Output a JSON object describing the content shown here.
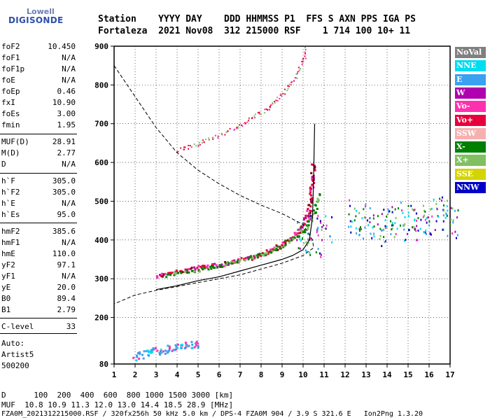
{
  "logo": {
    "top": "Lowell",
    "main": "DIGISONDE"
  },
  "header": {
    "line1": "Station    YYYY DAY    DDD HHMMSS P1  FFS S AXN PPS IGA PS",
    "line2": "Fortaleza  2021 Nov08  312 215000 RSF    1 714 100 10+ 11"
  },
  "params": [
    {
      "k": "foF2",
      "v": "10.450"
    },
    {
      "k": "foF1",
      "v": "N/A"
    },
    {
      "k": "foF1p",
      "v": "N/A"
    },
    {
      "k": "foE",
      "v": "N/A"
    },
    {
      "k": "foEp",
      "v": "0.46"
    },
    {
      "k": "fxI",
      "v": "10.90"
    },
    {
      "k": "foEs",
      "v": "3.00"
    },
    {
      "k": "fmin",
      "v": "1.95"
    },
    {
      "k": "MUF(D)",
      "v": "28.91"
    },
    {
      "k": "M(D)",
      "v": "2.77"
    },
    {
      "k": "D",
      "v": "N/A"
    },
    {
      "k": "h`F",
      "v": "305.0"
    },
    {
      "k": "h`F2",
      "v": "305.0"
    },
    {
      "k": "h`E",
      "v": "N/A"
    },
    {
      "k": "h`Es",
      "v": "95.0"
    },
    {
      "k": "hmF2",
      "v": "385.6"
    },
    {
      "k": "hmF1",
      "v": "N/A"
    },
    {
      "k": "hmE",
      "v": "110.0"
    },
    {
      "k": "yF2",
      "v": "97.1"
    },
    {
      "k": "yF1",
      "v": "N/A"
    },
    {
      "k": "yE",
      "v": "20.0"
    },
    {
      "k": "B0",
      "v": "89.4"
    },
    {
      "k": "B1",
      "v": "2.79"
    },
    {
      "k": "C-level",
      "v": "33"
    }
  ],
  "left_footer": {
    "auto": "Auto:",
    "artist": "Artist5",
    "version": "500200"
  },
  "legend": [
    {
      "label": "NoVal",
      "color": "#808080"
    },
    {
      "label": "NNE",
      "color": "#00dcf0"
    },
    {
      "label": "E",
      "color": "#3aa0f0"
    },
    {
      "label": "W",
      "color": "#b000b0"
    },
    {
      "label": "Vo-",
      "color": "#ff30b0"
    },
    {
      "label": "Vo+",
      "color": "#e8003c"
    },
    {
      "label": "SSW",
      "color": "#f7b0b0"
    },
    {
      "label": "X-",
      "color": "#008000"
    },
    {
      "label": "X+",
      "color": "#80c060"
    },
    {
      "label": "SSE",
      "color": "#d4d400"
    },
    {
      "label": "NNW",
      "color": "#0000c8"
    }
  ],
  "footer": {
    "line1": "D      100  200  400  600  800 1000 1500 3000 [km]",
    "line2": "MUF  10.8 10.9 11.3 12.0 13.0 14.4 18.5 28.9 [MHz]",
    "line3": "FZA0M_2021312215000.RSF / 320fx256h 50 kHz 5.0 km / DPS-4 FZA0M 904 / 3.9 S 321.6 E   Ion2Png 1.3.20"
  },
  "chart_data": {
    "type": "scatter",
    "xlim": [
      1,
      17
    ],
    "ylim": [
      80,
      900
    ],
    "x_ticks": [
      1,
      2,
      3,
      4,
      5,
      6,
      7,
      8,
      9,
      10,
      11,
      12,
      13,
      14,
      15,
      16,
      17
    ],
    "y_ticks": [
      80,
      200,
      300,
      400,
      500,
      600,
      700,
      800,
      900
    ],
    "o_trace": [
      [
        3.0,
        308
      ],
      [
        3.5,
        315
      ],
      [
        4.0,
        320
      ],
      [
        4.5,
        325
      ],
      [
        5.0,
        330
      ],
      [
        5.5,
        333
      ],
      [
        6.0,
        338
      ],
      [
        6.5,
        344
      ],
      [
        7.0,
        350
      ],
      [
        7.5,
        357
      ],
      [
        8.0,
        365
      ],
      [
        8.5,
        376
      ],
      [
        9.0,
        390
      ],
      [
        9.5,
        410
      ],
      [
        10.0,
        440
      ],
      [
        10.2,
        470
      ],
      [
        10.35,
        520
      ],
      [
        10.45,
        600
      ]
    ],
    "x_trace": [
      [
        3.5,
        310
      ],
      [
        4.5,
        320
      ],
      [
        5.5,
        330
      ],
      [
        6.5,
        342
      ],
      [
        7.5,
        356
      ],
      [
        8.5,
        374
      ],
      [
        9.5,
        405
      ],
      [
        10.0,
        425
      ],
      [
        10.5,
        470
      ],
      [
        10.7,
        520
      ]
    ],
    "second_hop": [
      [
        4.0,
        632
      ],
      [
        5.0,
        650
      ],
      [
        6.0,
        672
      ],
      [
        7.0,
        697
      ],
      [
        8.0,
        730
      ],
      [
        8.5,
        750
      ],
      [
        9.0,
        778
      ],
      [
        9.5,
        810
      ],
      [
        9.8,
        840
      ],
      [
        10.0,
        870
      ],
      [
        10.1,
        895
      ]
    ],
    "es_trace": [
      [
        2.0,
        100
      ],
      [
        2.5,
        110
      ],
      [
        3.0,
        115
      ],
      [
        3.5,
        120
      ],
      [
        4.0,
        125
      ],
      [
        4.5,
        130
      ],
      [
        5.0,
        133
      ]
    ],
    "spread_f": [
      [
        10.0,
        420
      ],
      [
        10.5,
        400
      ],
      [
        11.0,
        430
      ],
      [
        12.5,
        460
      ],
      [
        13.0,
        450
      ],
      [
        13.5,
        430
      ],
      [
        14.0,
        440
      ],
      [
        14.5,
        445
      ],
      [
        15.0,
        455
      ],
      [
        15.5,
        440
      ],
      [
        16.0,
        460
      ],
      [
        16.5,
        470
      ],
      [
        17.0,
        450
      ]
    ],
    "true_height_profile": [
      [
        3.0,
        272
      ],
      [
        4.0,
        282
      ],
      [
        5.0,
        295
      ],
      [
        6.0,
        305
      ],
      [
        7.0,
        320
      ],
      [
        8.0,
        335
      ],
      [
        9.0,
        350
      ],
      [
        9.5,
        360
      ],
      [
        10.0,
        375
      ],
      [
        10.3,
        400
      ],
      [
        10.45,
        460
      ],
      [
        10.5,
        560
      ],
      [
        10.55,
        700
      ]
    ],
    "muf_curve": [
      [
        1.0,
        850
      ],
      [
        2.0,
        770
      ],
      [
        3.0,
        690
      ],
      [
        4.0,
        625
      ],
      [
        5.0,
        580
      ],
      [
        6.0,
        545
      ],
      [
        7.0,
        515
      ],
      [
        8.0,
        490
      ],
      [
        9.0,
        468
      ],
      [
        10.0,
        440
      ],
      [
        10.45,
        400
      ],
      [
        10.5,
        380
      ],
      [
        10.0,
        360
      ],
      [
        9.0,
        340
      ],
      [
        8.0,
        325
      ],
      [
        7.0,
        310
      ],
      [
        6.0,
        300
      ],
      [
        5.0,
        290
      ],
      [
        4.0,
        280
      ],
      [
        3.0,
        270
      ],
      [
        2.0,
        258
      ],
      [
        1.0,
        235
      ]
    ]
  }
}
